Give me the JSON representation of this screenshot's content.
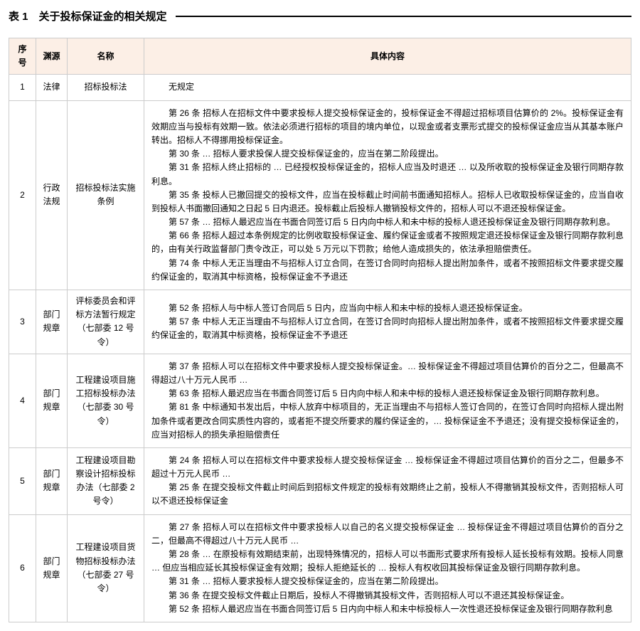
{
  "title": "表 1　关于投标保证金的相关规定",
  "columns": {
    "seq": "序号",
    "source": "渊源",
    "name": "名称",
    "content": "具体内容"
  },
  "header_bg": "#fcefe6",
  "border_color": "#cccccc",
  "rows": [
    {
      "seq": "1",
      "source": "法律",
      "name": "招标投标法",
      "content": [
        "无规定"
      ]
    },
    {
      "seq": "2",
      "source": "行政法规",
      "name": "招标投标法实施条例",
      "content": [
        "第 26 条 招标人在招标文件中要求投标人提交投标保证金的，投标保证金不得超过招标项目估算价的 2%。投标保证金有效期应当与投标有效期一致。依法必须进行招标的项目的境内单位，以现金或者支票形式提交的投标保证金应当从其基本账户转出。招标人不得挪用投标保证金。",
        "第 30 条 … 招标人要求投保人提交投标保证金的，应当在第二阶段提出。",
        "第 31 条 招标人终止招标的 … 已经授权投标保证金的，招标人应当及时退还 … 以及所收取的投标保证金及银行同期存款利息。",
        "第 35 条 投标人已撤回提交的投标文件，应当在投标截止时间前书面通知招标人。招标人已收取投标保证金的，应当自收到投标人书面撤回通知之日起 5 日内退还。投标截止后投标人撤销投标文件的，招标人可以不退还投标保证金。",
        "第 57 条 … 招标人最迟应当在书面合同签订后 5 日内向中标人和未中标的投标人退还投标保证金及银行同期存款利息。",
        "第 66 条 招标人超过本条例规定的比例收取投标保证金、履约保证金或者不按照规定退还投标保证金及银行同期存款利息的，由有关行政监督部门责令改正，可以处 5 万元以下罚款；给他人造成损失的，依法承担赔偿责任。",
        "第 74 条 中标人无正当理由不与招标人订立合同，在签订合同时向招标人提出附加条件，或者不按照招标文件要求提交履约保证金的，取消其中标资格，投标保证金不予退还"
      ]
    },
    {
      "seq": "3",
      "source": "部门规章",
      "name": "评标委员会和评标方法暂行规定（七部委 12 号令）",
      "content": [
        "第 52 条 招标人与中标人签订合同后 5 日内，应当向中标人和未中标的投标人退还投标保证金。",
        "第 57 条 中标人无正当理由不与招标人订立合同，在签订合同时向招标人提出附加条件，或者不按照招标文件要求提交履约保证金的，取消其中标资格，投标保证金不予退还"
      ]
    },
    {
      "seq": "4",
      "source": "部门规章",
      "name": "工程建设项目施工招标投标办法（七部委 30 号令）",
      "content": [
        "第 37 条 招标人可以在招标文件中要求投标人提交投标保证金。… 投标保证金不得超过项目估算价的百分之二，但最高不得超过八十万元人民币 …",
        "第 63 条 招标人最迟应当在书面合同签订后 5 日内向中标人和未中标的投标人退还投标保证金及银行同期存款利息。",
        "第 81 条 中标通知书发出后，中标人放弃中标项目的，无正当理由不与招标人签订合同的，在签订合同时向招标人提出附加条件或者更改合同实质性内容的，或者拒不提交所要求的履约保证金的，… 投标保证金不予退还；没有提交投标保证金的，应当对招标人的损失承担赔偿责任"
      ]
    },
    {
      "seq": "5",
      "source": "部门规章",
      "name": "工程建设项目勘察设计招标投标办法（七部委 2 号令）",
      "content": [
        "第 24 条 招标人可以在招标文件中要求投标人提交投标保证金 … 投标保证金不得超过项目估算价的百分之二，但最多不超过十万元人民币 …",
        "第 25 条 在提交投标文件截止时间后到招标文件规定的投标有效期终止之前，投标人不得撤销其投标文件，否则招标人可以不退还投标保证金"
      ]
    },
    {
      "seq": "6",
      "source": "部门规章",
      "name": "工程建设项目货物招标投标办法（七部委 27 号令）",
      "content": [
        "第 27 条 招标人可以在招标文件中要求投标人以自己的名义提交投标保证金 … 投标保证金不得超过项目估算价的百分之二，但最高不得超过八十万元人民币 …",
        "第 28 条 … 在原投标有效期结束前，出现特殊情况的，招标人可以书面形式要求所有投标人延长投标有效期。投标人同意 … 但应当相应延长其投标保证金有效期；投标人拒绝延长的 … 投标人有权收回其投标保证金及银行同期存款利息。",
        "第 31 条 … 招标人要求投标人提交投标保证金的，应当在第二阶段提出。",
        "第 36 条 在提交投标文件截止日期后，投标人不得撤销其投标文件，否则招标人可以不退还其投标保证金。",
        "第 52 条 招标人最迟应当在书面合同签订后 5 日内向中标人和未中标投标人一次性退还投标保证金及银行同期存款利息"
      ]
    }
  ]
}
